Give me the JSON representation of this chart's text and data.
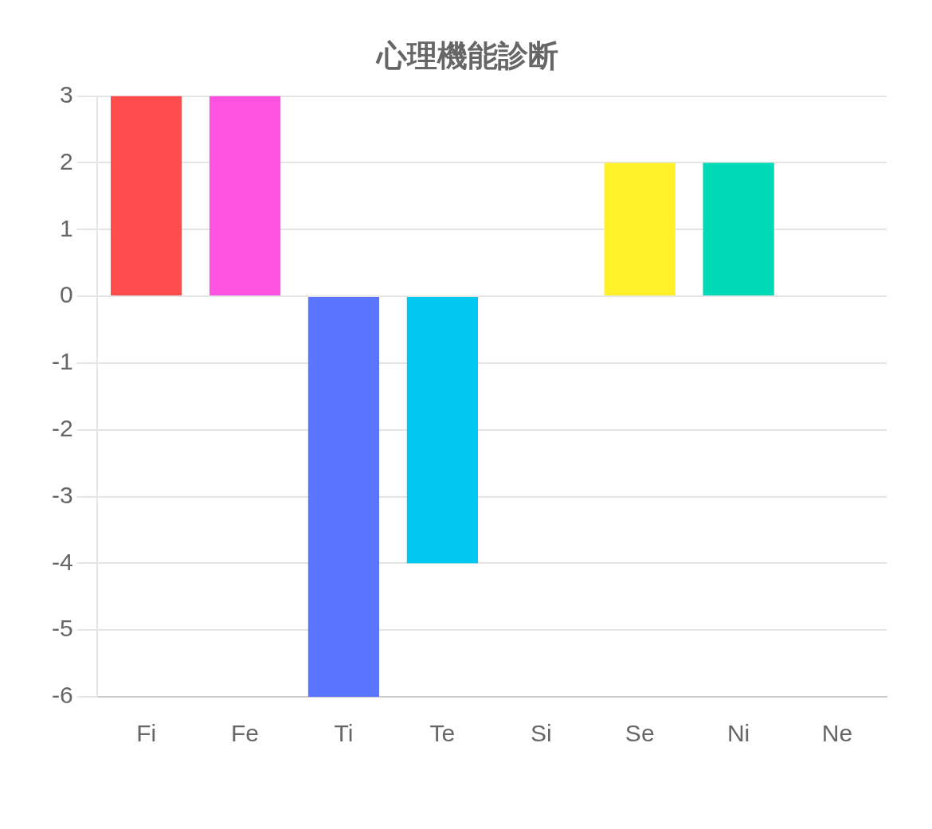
{
  "chart_data": {
    "type": "bar",
    "title": "心理機能診断",
    "categories": [
      "Fi",
      "Fe",
      "Ti",
      "Te",
      "Si",
      "Se",
      "Ni",
      "Ne"
    ],
    "values": [
      3,
      3,
      -6,
      -4,
      0,
      2,
      2,
      0
    ],
    "colors": [
      "#ff4d4d",
      "#ff52e0",
      "#5a75ff",
      "#00c8f0",
      "#9966ff",
      "#fff02a",
      "#00d9b5",
      "#ff9f40"
    ],
    "ylim": [
      -6,
      3
    ],
    "yticks": [
      -6,
      -5,
      -4,
      -3,
      -2,
      -1,
      0,
      1,
      2,
      3
    ],
    "grid": "y",
    "legend": false
  }
}
